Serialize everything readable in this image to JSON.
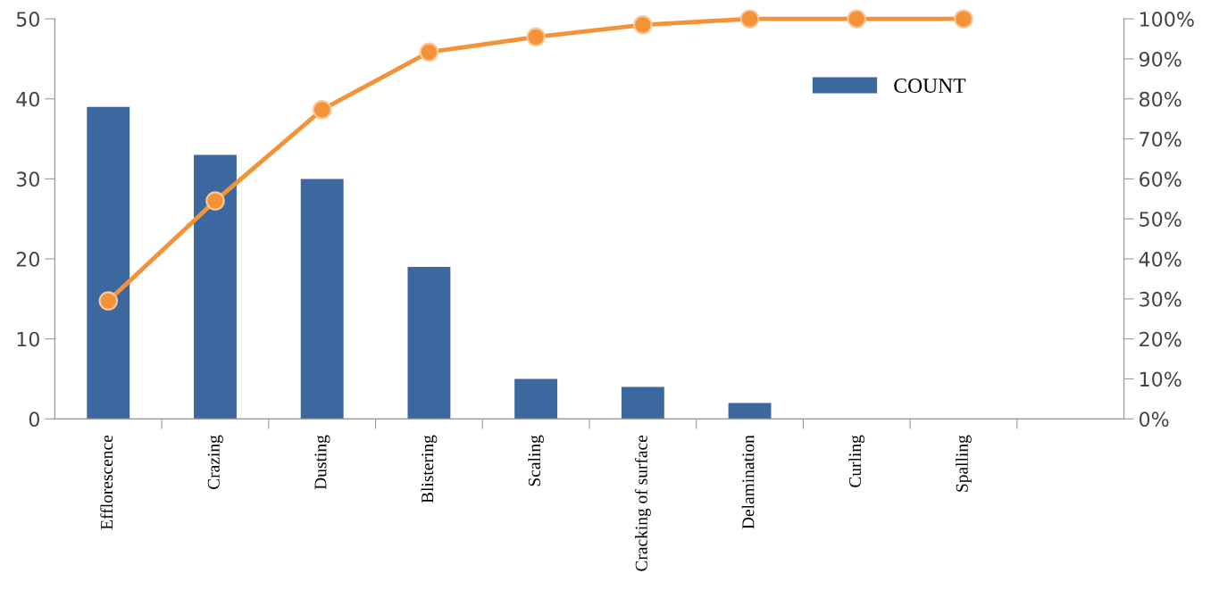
{
  "chart_data": {
    "type": "bar",
    "categories": [
      "Efflorescence",
      "Crazing",
      "Dusting",
      "Blistering",
      "Scaling",
      "Cracking of surface",
      "Delamination",
      "Curling",
      "Spalling",
      null
    ],
    "series": [
      {
        "name": "COUNT",
        "color": "#3d679f",
        "values": [
          39,
          33,
          30,
          19,
          5,
          4,
          2,
          0,
          0,
          null
        ]
      },
      {
        "type": "line",
        "axis": "y2",
        "color": "#f39236",
        "marker": "circle",
        "line_style": "solid",
        "values": [
          29.5,
          54.5,
          77.3,
          91.7,
          95.5,
          98.5,
          100,
          100,
          100,
          null
        ]
      }
    ],
    "ylim": [
      0,
      50
    ],
    "yticks": [
      0,
      10,
      20,
      30,
      40,
      50
    ],
    "y2lim": [
      0,
      100
    ],
    "y2ticks": [
      {
        "value": 0,
        "label": "0%"
      },
      {
        "value": 10,
        "label": "10%"
      },
      {
        "value": 20,
        "label": "20%"
      },
      {
        "value": 30,
        "label": "30%"
      },
      {
        "value": 40,
        "label": "40%"
      },
      {
        "value": 50,
        "label": "50%"
      },
      {
        "value": 60,
        "label": "60%"
      },
      {
        "value": 70,
        "label": "70%"
      },
      {
        "value": 80,
        "label": "80%"
      },
      {
        "value": 90,
        "label": "90%"
      },
      {
        "value": 100,
        "label": "100%"
      }
    ],
    "grid": false,
    "legend": "top right"
  }
}
